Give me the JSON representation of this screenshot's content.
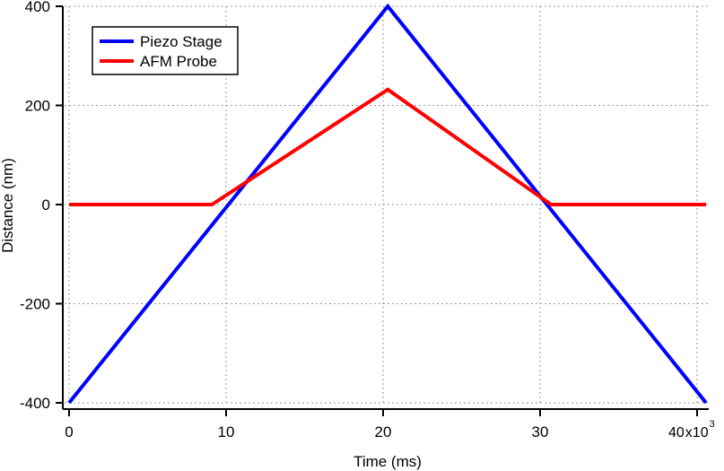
{
  "chart_data": {
    "type": "line",
    "title": "",
    "xlabel": "Time (ms)",
    "ylabel": "Distance (nm)",
    "x_multiplier_label": "x10",
    "x_multiplier_exp": "3",
    "xlim": [
      0,
      40570
    ],
    "ylim": [
      -400,
      400
    ],
    "xticks": [
      0,
      10,
      20,
      30,
      40
    ],
    "xtick_labels": [
      "0",
      "10",
      "20",
      "30",
      "40"
    ],
    "yticks": [
      400,
      200,
      0,
      -200,
      -400
    ],
    "ytick_labels": [
      "400",
      "200",
      "0",
      "-200",
      "-400"
    ],
    "grid": true,
    "legend_position": "top-left",
    "series": [
      {
        "name": "Piezo Stage",
        "color": "#0000ff",
        "x": [
          0,
          20300,
          40570
        ],
        "y": [
          -400,
          400,
          -400
        ]
      },
      {
        "name": "AFM Probe",
        "color": "#ff0000",
        "x": [
          0,
          9100,
          20300,
          30700,
          40570
        ],
        "y": [
          0,
          0,
          232,
          0,
          0
        ]
      }
    ]
  }
}
